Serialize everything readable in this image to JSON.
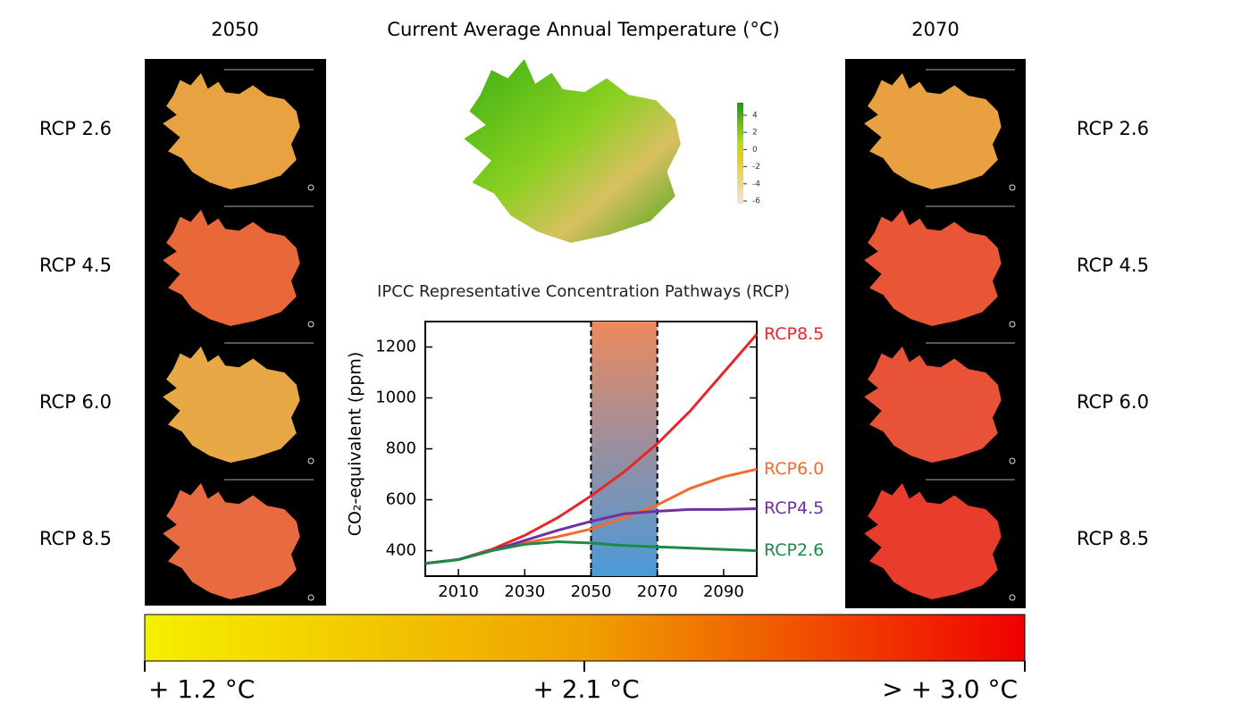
{
  "left_panel": {
    "heading": "2050",
    "rows": [
      "RCP 2.6",
      "RCP 4.5",
      "RCP 6.0",
      "RCP 8.5"
    ]
  },
  "right_panel": {
    "heading": "2070",
    "rows": [
      "RCP 2.6",
      "RCP 4.5",
      "RCP 6.0",
      "RCP 8.5"
    ]
  },
  "temperature_map": {
    "title": "Current Average Annual Temperature (°C)",
    "legend_ticks": [
      4,
      2,
      0,
      -2,
      -4,
      -6
    ]
  },
  "chart_data": {
    "type": "line",
    "title": "IPCC Representative Concentration Pathways (RCP)",
    "y_label": "CO₂-equivalent (ppm)",
    "x": [
      2000,
      2010,
      2020,
      2030,
      2040,
      2050,
      2060,
      2070,
      2080,
      2090,
      2100
    ],
    "xlim": [
      2000,
      2100
    ],
    "xticks": [
      2010,
      2030,
      2050,
      2070,
      2090
    ],
    "ylim": [
      300,
      1300
    ],
    "yticks": [
      400,
      600,
      800,
      1000,
      1200
    ],
    "shaded_range": [
      2050,
      2070
    ],
    "series": [
      {
        "name": "RCP8.5",
        "color": "#e8262a",
        "values": [
          350,
          365,
          405,
          460,
          530,
          615,
          710,
          820,
          950,
          1100,
          1250
        ]
      },
      {
        "name": "RCP6.0",
        "color": "#f26b2a",
        "values": [
          350,
          365,
          400,
          430,
          455,
          485,
          530,
          580,
          645,
          690,
          720
        ]
      },
      {
        "name": "RCP4.5",
        "color": "#7030a0",
        "values": [
          350,
          365,
          400,
          440,
          480,
          515,
          545,
          555,
          562,
          562,
          565
        ]
      },
      {
        "name": "RCP2.6",
        "color": "#1e8a45",
        "values": [
          350,
          365,
          400,
          425,
          435,
          430,
          420,
          415,
          410,
          405,
          400
        ]
      }
    ]
  },
  "warming_scale": {
    "labels": [
      "+ 1.2 °C",
      "+ 2.1 °C",
      "> + 3.0 °C"
    ]
  }
}
